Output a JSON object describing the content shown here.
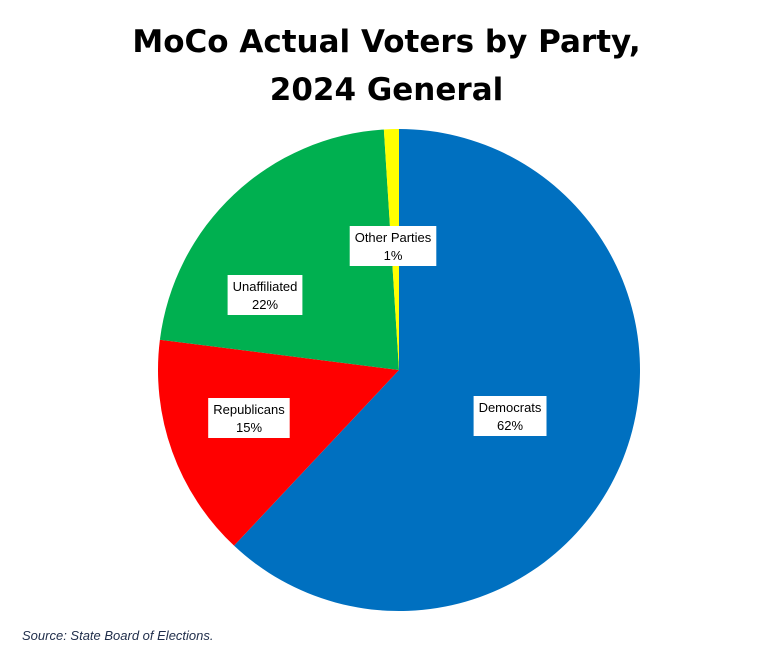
{
  "chart_data": {
    "type": "pie",
    "title_lines": [
      "MoCo Actual Voters by Party,",
      "2024 General"
    ],
    "slices": [
      {
        "label": "Democrats",
        "value": 62,
        "value_label": "62%",
        "color": "#0070C0"
      },
      {
        "label": "Republicans",
        "value": 15,
        "value_label": "15%",
        "color": "#FF0000"
      },
      {
        "label": "Unaffiliated",
        "value": 22,
        "value_label": "22%",
        "color": "#00B050"
      },
      {
        "label": "Other Parties",
        "value": 1,
        "value_label": "1%",
        "color": "#FFFF00"
      }
    ],
    "start_angle_deg": 0,
    "direction": "clockwise",
    "legend": "none"
  },
  "source": "Source: State Board of Elections."
}
